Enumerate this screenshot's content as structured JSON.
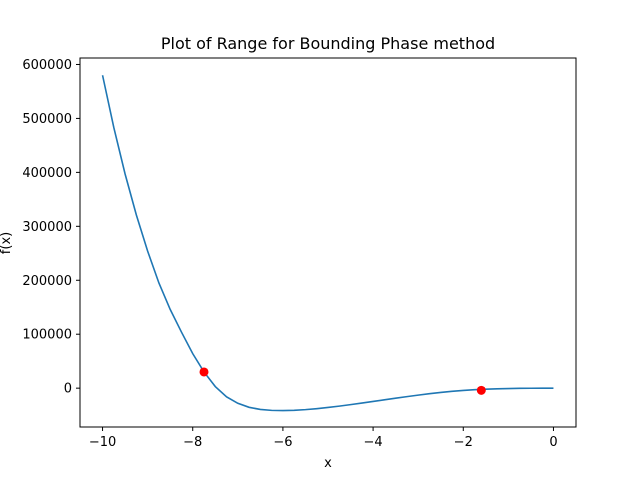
{
  "chart_data": {
    "type": "line",
    "title": "Plot of Range for Bounding Phase method",
    "xlabel": "x",
    "ylabel": "f(x)",
    "xlim": [
      -10.5,
      0.5
    ],
    "ylim": [
      -72000,
      612000
    ],
    "grid": false,
    "xticks": [
      -10,
      -8,
      -6,
      -4,
      -2,
      0
    ],
    "xtick_labels": [
      "−10",
      "−8",
      "−6",
      "−4",
      "−2",
      "0"
    ],
    "yticks": [
      0,
      100000,
      200000,
      300000,
      400000,
      500000,
      600000
    ],
    "ytick_labels": [
      "0",
      "100000",
      "200000",
      "300000",
      "400000",
      "500000",
      "600000"
    ],
    "series": [
      {
        "color": "#1f77b4",
        "x": [
          -10,
          -9.75,
          -9.5,
          -9.25,
          -9,
          -8.75,
          -8.5,
          -8.25,
          -8,
          -7.75,
          -7.5,
          -7.25,
          -7,
          -6.75,
          -6.5,
          -6.25,
          -6,
          -5.75,
          -5.5,
          -5.25,
          -5,
          -4.75,
          -4.5,
          -4.25,
          -4,
          -3.75,
          -3.5,
          -3.25,
          -3,
          -2.75,
          -2.5,
          -2.25,
          -2,
          -1.75,
          -1.5,
          -1.25,
          -1,
          -0.75,
          -0.5,
          -0.25,
          0
        ],
        "y": [
          580000,
          483000,
          397000,
          321000,
          254000,
          195000,
          146000,
          104000,
          64000,
          30000,
          3000,
          -16000,
          -28000,
          -35500,
          -39500,
          -41200,
          -41500,
          -41000,
          -39800,
          -38000,
          -35800,
          -33300,
          -30500,
          -27600,
          -24600,
          -21600,
          -18600,
          -15700,
          -12900,
          -10300,
          -7900,
          -5900,
          -4200,
          -2900,
          -1900,
          -1200,
          -700,
          -350,
          -150,
          -40,
          0
        ]
      }
    ],
    "points": [
      {
        "x": -7.75,
        "y": 30000,
        "color": "#ff0000"
      },
      {
        "x": -1.6,
        "y": -4000,
        "color": "#ff0000"
      }
    ]
  }
}
